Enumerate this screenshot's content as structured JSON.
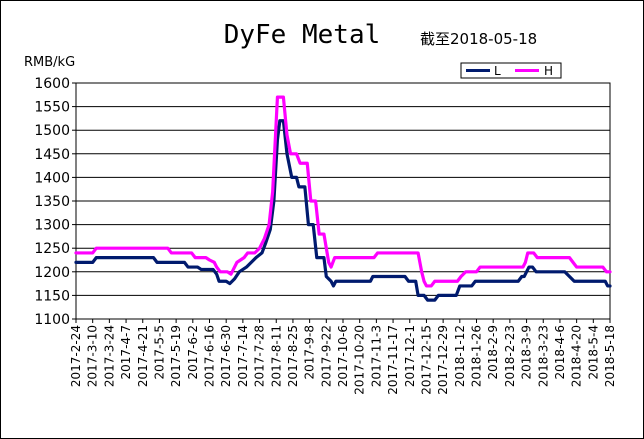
{
  "chart_data": {
    "type": "line",
    "title": "DyFe Metal",
    "subtitle": "截至2018-05-18",
    "ylabel": "RMB/kG",
    "ylim": [
      1100,
      1600
    ],
    "yticks": [
      1100,
      1150,
      1200,
      1250,
      1300,
      1350,
      1400,
      1450,
      1500,
      1550,
      1600
    ],
    "xlim": [
      "2017-02-24",
      "2018-05-18"
    ],
    "x_tick_labels": [
      "2017-2-24",
      "2017-3-10",
      "2017-3-24",
      "2017-4-7",
      "2017-4-21",
      "2017-5-5",
      "2017-5-19",
      "2017-6-2",
      "2017-6-16",
      "2017-6-30",
      "2017-7-14",
      "2017-7-28",
      "2017-8-11",
      "2017-8-25",
      "2017-9-8",
      "2017-9-22",
      "2017-10-6",
      "2017-10-20",
      "2017-11-3",
      "2017-11-17",
      "2017-12-1",
      "2017-12-15",
      "2017-12-29",
      "2018-1-12",
      "2018-1-26",
      "2018-2-9",
      "2018-2-23",
      "2018-3-9",
      "2018-3-23",
      "2018-4-6",
      "2018-4-20",
      "2018-5-4",
      "2018-5-18"
    ],
    "grid": true,
    "legend_position": "top-right",
    "series": [
      {
        "name": "L",
        "color": "#001a6e",
        "points": [
          [
            "2017-02-24",
            1220
          ],
          [
            "2017-03-10",
            1220
          ],
          [
            "2017-03-13",
            1230
          ],
          [
            "2017-04-30",
            1230
          ],
          [
            "2017-05-03",
            1220
          ],
          [
            "2017-05-26",
            1220
          ],
          [
            "2017-05-29",
            1210
          ],
          [
            "2017-06-06",
            1210
          ],
          [
            "2017-06-09",
            1205
          ],
          [
            "2017-06-19",
            1205
          ],
          [
            "2017-06-22",
            1195
          ],
          [
            "2017-06-24",
            1180
          ],
          [
            "2017-06-30",
            1180
          ],
          [
            "2017-07-03",
            1175
          ],
          [
            "2017-07-07",
            1185
          ],
          [
            "2017-07-11",
            1200
          ],
          [
            "2017-07-17",
            1210
          ],
          [
            "2017-07-21",
            1220
          ],
          [
            "2017-07-25",
            1230
          ],
          [
            "2017-07-30",
            1240
          ],
          [
            "2017-08-02",
            1260
          ],
          [
            "2017-08-06",
            1290
          ],
          [
            "2017-08-09",
            1350
          ],
          [
            "2017-08-12",
            1480
          ],
          [
            "2017-08-14",
            1520
          ],
          [
            "2017-08-17",
            1520
          ],
          [
            "2017-08-20",
            1450
          ],
          [
            "2017-08-24",
            1400
          ],
          [
            "2017-08-28",
            1400
          ],
          [
            "2017-08-30",
            1380
          ],
          [
            "2017-09-04",
            1380
          ],
          [
            "2017-09-07",
            1300
          ],
          [
            "2017-09-11",
            1300
          ],
          [
            "2017-09-14",
            1230
          ],
          [
            "2017-09-20",
            1230
          ],
          [
            "2017-09-22",
            1190
          ],
          [
            "2017-09-26",
            1180
          ],
          [
            "2017-09-28",
            1170
          ],
          [
            "2017-09-30",
            1180
          ],
          [
            "2017-10-29",
            1180
          ],
          [
            "2017-10-31",
            1190
          ],
          [
            "2017-11-27",
            1190
          ],
          [
            "2017-11-30",
            1180
          ],
          [
            "2017-12-06",
            1180
          ],
          [
            "2017-12-08",
            1150
          ],
          [
            "2017-12-13",
            1150
          ],
          [
            "2017-12-16",
            1140
          ],
          [
            "2017-12-22",
            1140
          ],
          [
            "2017-12-25",
            1150
          ],
          [
            "2018-01-09",
            1150
          ],
          [
            "2018-01-12",
            1170
          ],
          [
            "2018-01-22",
            1170
          ],
          [
            "2018-01-25",
            1180
          ],
          [
            "2018-03-02",
            1180
          ],
          [
            "2018-03-05",
            1190
          ],
          [
            "2018-03-07",
            1190
          ],
          [
            "2018-03-09",
            1200
          ],
          [
            "2018-03-11",
            1210
          ],
          [
            "2018-03-14",
            1210
          ],
          [
            "2018-03-17",
            1200
          ],
          [
            "2018-04-10",
            1200
          ],
          [
            "2018-04-14",
            1190
          ],
          [
            "2018-04-18",
            1180
          ],
          [
            "2018-05-14",
            1180
          ],
          [
            "2018-05-16",
            1170
          ],
          [
            "2018-05-18",
            1170
          ]
        ]
      },
      {
        "name": "H",
        "color": "#ff00ff",
        "points": [
          [
            "2017-02-24",
            1240
          ],
          [
            "2017-03-10",
            1240
          ],
          [
            "2017-03-13",
            1250
          ],
          [
            "2017-05-12",
            1250
          ],
          [
            "2017-05-15",
            1240
          ],
          [
            "2017-06-01",
            1240
          ],
          [
            "2017-06-04",
            1230
          ],
          [
            "2017-06-13",
            1230
          ],
          [
            "2017-06-16",
            1225
          ],
          [
            "2017-06-20",
            1220
          ],
          [
            "2017-06-22",
            1210
          ],
          [
            "2017-06-25",
            1200
          ],
          [
            "2017-07-01",
            1200
          ],
          [
            "2017-07-04",
            1195
          ],
          [
            "2017-07-09",
            1220
          ],
          [
            "2017-07-15",
            1230
          ],
          [
            "2017-07-18",
            1240
          ],
          [
            "2017-07-24",
            1240
          ],
          [
            "2017-07-28",
            1250
          ],
          [
            "2017-08-01",
            1270
          ],
          [
            "2017-08-05",
            1300
          ],
          [
            "2017-08-08",
            1370
          ],
          [
            "2017-08-12",
            1570
          ],
          [
            "2017-08-17",
            1570
          ],
          [
            "2017-08-20",
            1490
          ],
          [
            "2017-08-23",
            1450
          ],
          [
            "2017-08-28",
            1450
          ],
          [
            "2017-08-31",
            1430
          ],
          [
            "2017-09-06",
            1430
          ],
          [
            "2017-09-09",
            1350
          ],
          [
            "2017-09-13",
            1350
          ],
          [
            "2017-09-16",
            1280
          ],
          [
            "2017-09-20",
            1280
          ],
          [
            "2017-09-22",
            1250
          ],
          [
            "2017-09-24",
            1220
          ],
          [
            "2017-09-26",
            1210
          ],
          [
            "2017-09-29",
            1230
          ],
          [
            "2017-11-01",
            1230
          ],
          [
            "2017-11-04",
            1240
          ],
          [
            "2017-12-08",
            1240
          ],
          [
            "2017-12-11",
            1200
          ],
          [
            "2017-12-13",
            1180
          ],
          [
            "2017-12-15",
            1170
          ],
          [
            "2017-12-19",
            1170
          ],
          [
            "2017-12-22",
            1180
          ],
          [
            "2018-01-10",
            1180
          ],
          [
            "2018-01-13",
            1190
          ],
          [
            "2018-01-17",
            1200
          ],
          [
            "2018-01-26",
            1200
          ],
          [
            "2018-01-29",
            1210
          ],
          [
            "2018-03-06",
            1210
          ],
          [
            "2018-03-08",
            1220
          ],
          [
            "2018-03-10",
            1240
          ],
          [
            "2018-03-15",
            1240
          ],
          [
            "2018-03-18",
            1230
          ],
          [
            "2018-04-14",
            1230
          ],
          [
            "2018-04-17",
            1220
          ],
          [
            "2018-04-20",
            1210
          ],
          [
            "2018-05-12",
            1210
          ],
          [
            "2018-05-15",
            1200
          ],
          [
            "2018-05-18",
            1200
          ]
        ]
      }
    ]
  }
}
